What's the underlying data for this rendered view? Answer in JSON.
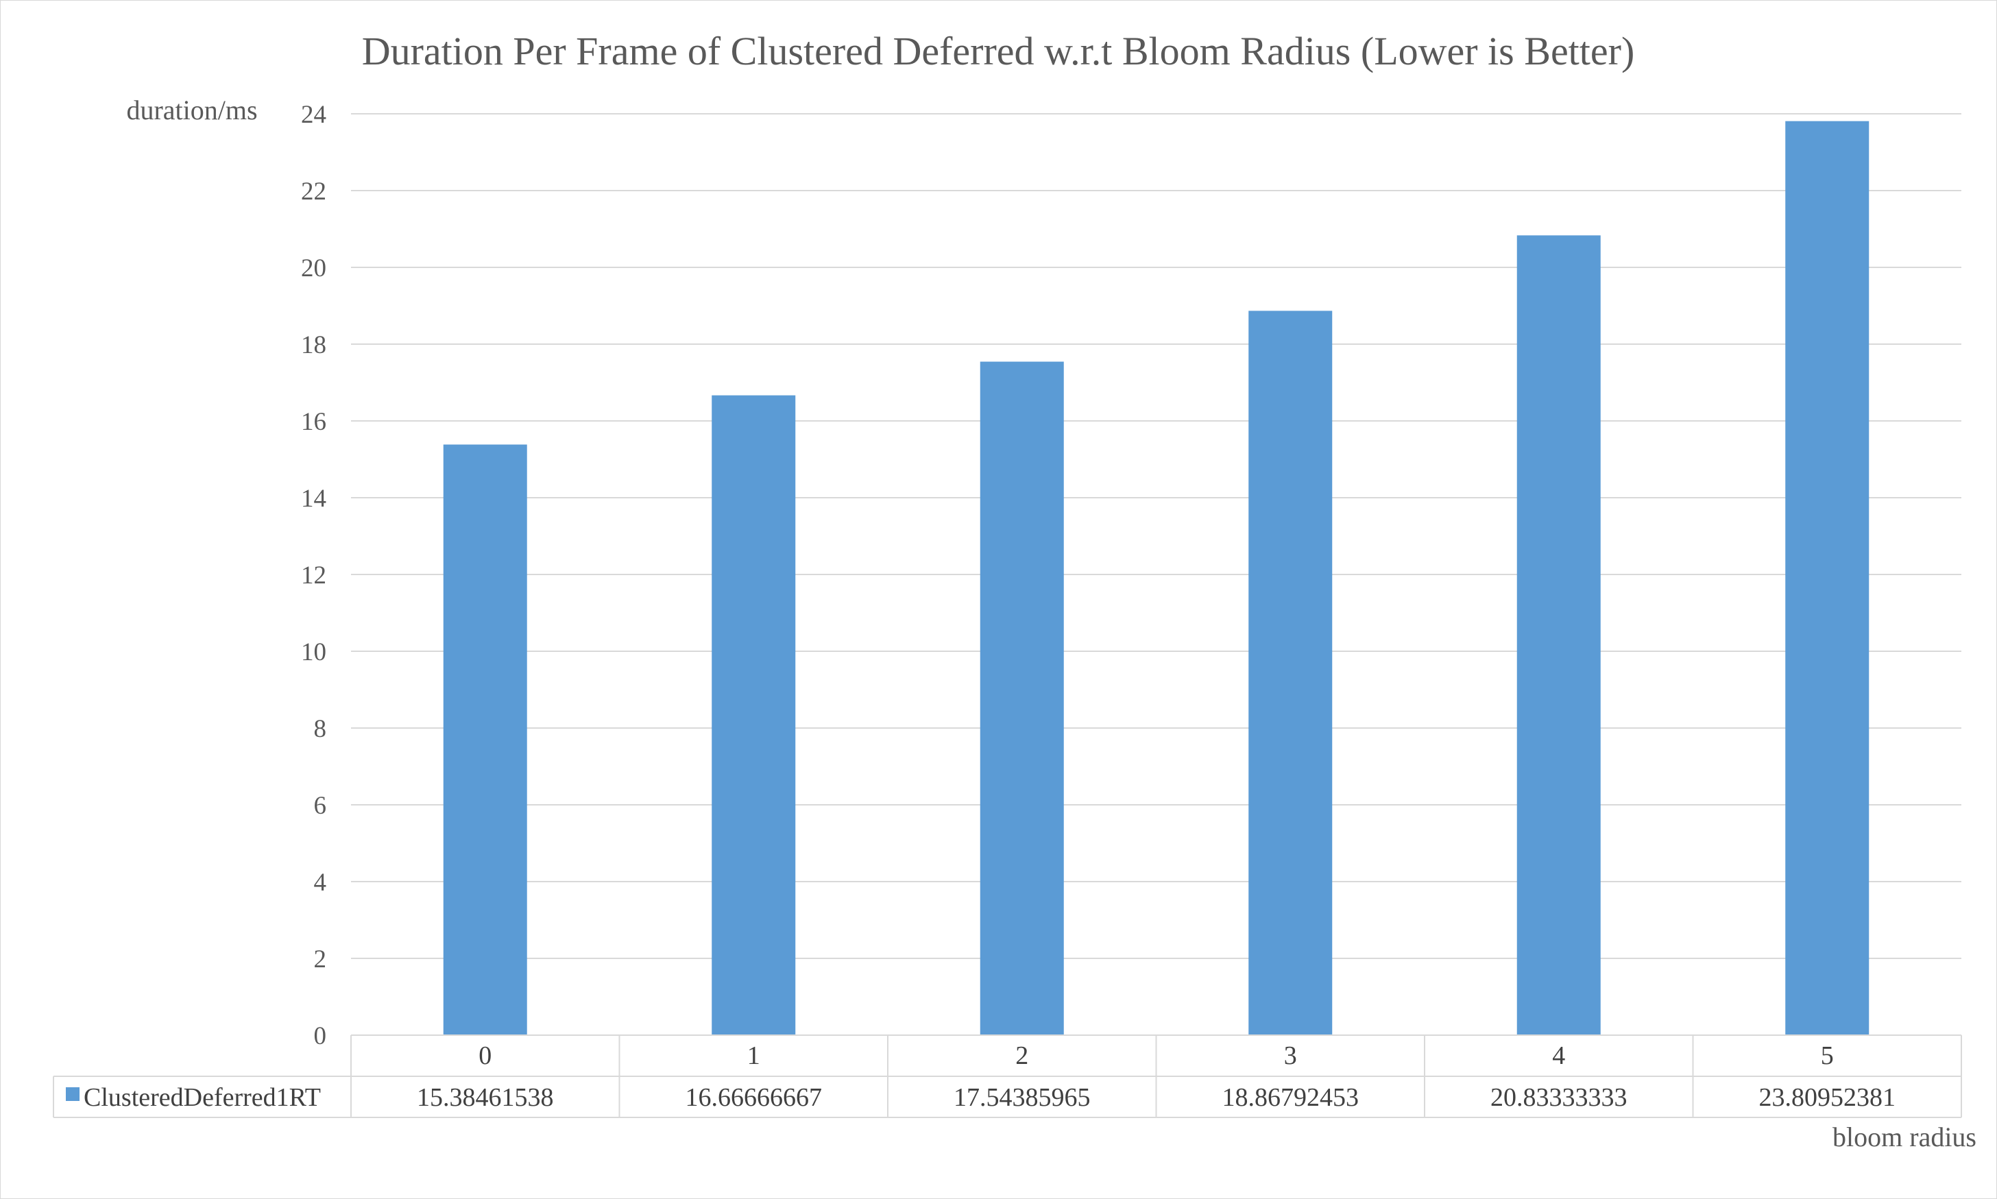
{
  "chart_data": {
    "type": "bar",
    "title": "Duration Per Frame of Clustered Deferred w.r.t Bloom Radius (Lower is Better)",
    "ylabel": "duration/ms",
    "xlabel": "bloom radius",
    "ylim": [
      0,
      24
    ],
    "yticks": [
      "0",
      "2",
      "4",
      "6",
      "8",
      "10",
      "12",
      "14",
      "16",
      "18",
      "20",
      "22",
      "24"
    ],
    "grid": true,
    "categories": [
      "0",
      "1",
      "2",
      "3",
      "4",
      "5"
    ],
    "series": [
      {
        "name": "ClusteredDeferred1RT",
        "values": [
          15.38461538,
          16.66666667,
          17.54385965,
          18.86792453,
          20.83333333,
          23.80952381
        ],
        "value_labels": [
          "15.38461538",
          "16.66666667",
          "17.54385965",
          "18.86792453",
          "20.83333333",
          "23.80952381"
        ]
      }
    ],
    "data_table": true,
    "colors": {
      "bar": "#5b9bd5",
      "grid": "#d9d9d9",
      "text": "#595959",
      "table_border": "#d9d9d9"
    }
  }
}
